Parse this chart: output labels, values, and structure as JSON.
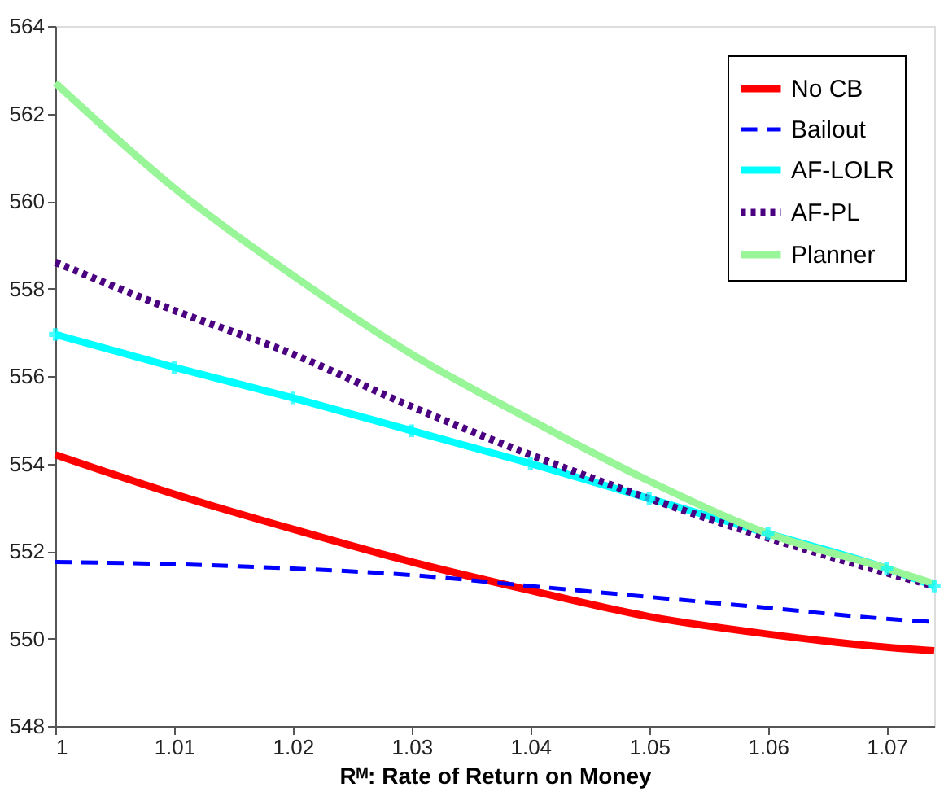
{
  "chart_data": {
    "type": "line",
    "xlabel": "Rᴹ: Rate of Return on Money",
    "x": [
      1,
      1.01,
      1.02,
      1.03,
      1.04,
      1.05,
      1.06,
      1.07,
      1.074
    ],
    "xlim": [
      1,
      1.074
    ],
    "xticks": [
      1,
      1.01,
      1.02,
      1.03,
      1.04,
      1.05,
      1.06,
      1.07
    ],
    "ylim": [
      548,
      564
    ],
    "yticks": [
      548,
      550,
      552,
      554,
      556,
      558,
      560,
      562,
      564
    ],
    "grid": false,
    "legend": "top right",
    "series": [
      {
        "name": "No CB",
        "color": "#ff0000",
        "line_style": "solid",
        "marker": "none",
        "values": [
          554.2,
          553.3,
          552.5,
          551.75,
          551.1,
          550.5,
          550.1,
          549.8,
          549.72
        ]
      },
      {
        "name": "Bailout",
        "color": "#0000ff",
        "line_style": "dashed",
        "marker": "none",
        "values": [
          551.75,
          551.7,
          551.6,
          551.45,
          551.2,
          550.95,
          550.7,
          550.45,
          550.38
        ]
      },
      {
        "name": "AF-LOLR",
        "color": "#00ffff",
        "line_style": "solid",
        "marker": "cross",
        "values": [
          556.95,
          556.2,
          555.5,
          554.75,
          554.0,
          553.2,
          552.4,
          551.6,
          551.2
        ]
      },
      {
        "name": "AF-PL",
        "color": "#4b0082",
        "line_style": "dotted",
        "marker": "none",
        "values": [
          558.6,
          557.5,
          556.5,
          555.3,
          554.2,
          553.2,
          552.3,
          551.5,
          551.2
        ]
      },
      {
        "name": "Planner",
        "color": "#98f598",
        "line_style": "solid",
        "marker": "none",
        "values": [
          562.7,
          560.3,
          558.3,
          556.5,
          555.0,
          553.6,
          552.4,
          551.6,
          551.25
        ]
      }
    ]
  }
}
